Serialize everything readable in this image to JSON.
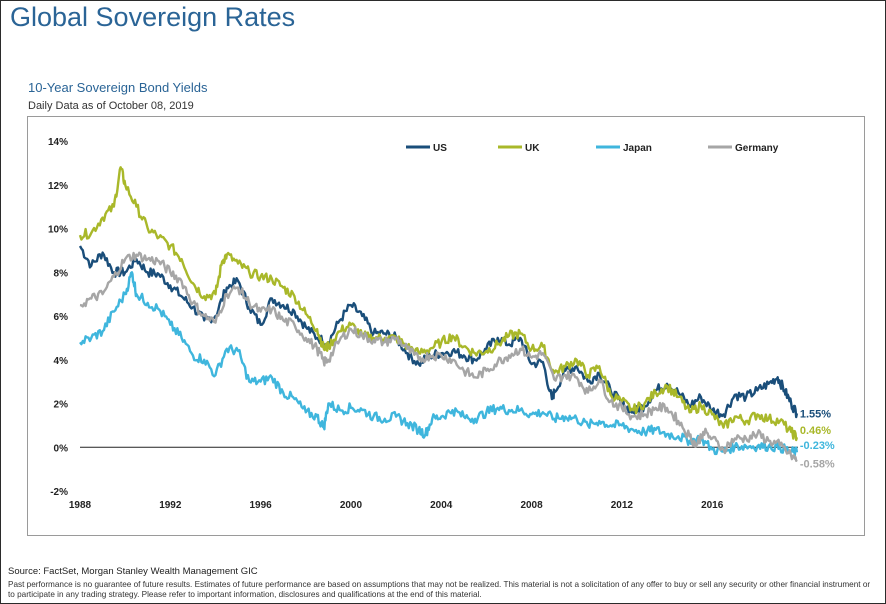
{
  "page": {
    "title": "Global Sovereign Rates",
    "subtitle": "10-Year Sovereign Bond Yields",
    "date_note": "Daily Data as of October 08, 2019",
    "source": "Source: FactSet, Morgan Stanley Wealth Management GIC",
    "disclaimer": "Past performance is no guarantee of future results. Estimates of future performance are based on assumptions that may not be realized. This material is not a solicitation of any offer to buy or sell any security or other financial instrument or to participate in any trading strategy. Please refer to important information, disclosures and qualifications at the end of this material."
  },
  "chart_data": {
    "type": "line",
    "title": "10-Year Sovereign Bond Yields",
    "xlabel": "",
    "ylabel": "",
    "xlim": [
      1988,
      2019.8
    ],
    "ylim": [
      -2,
      14
    ],
    "x_ticks": [
      1988,
      1992,
      1996,
      2000,
      2004,
      2008,
      2012,
      2016
    ],
    "y_ticks": [
      -2,
      0,
      2,
      4,
      6,
      8,
      10,
      12,
      14
    ],
    "y_tick_labels": [
      "-2%",
      "0%",
      "2%",
      "4%",
      "6%",
      "8%",
      "10%",
      "12%",
      "14%"
    ],
    "grid": false,
    "zero_line": true,
    "legend_position": "top",
    "series": [
      {
        "name": "US",
        "color": "#1a4e7a",
        "end_label": "1.55%",
        "points": [
          [
            1988,
            9.2
          ],
          [
            1988.5,
            8.3
          ],
          [
            1989,
            8.9
          ],
          [
            1989.5,
            8.0
          ],
          [
            1990,
            8.0
          ],
          [
            1990.5,
            8.6
          ],
          [
            1991,
            8.0
          ],
          [
            1991.5,
            7.9
          ],
          [
            1992,
            7.4
          ],
          [
            1992.5,
            6.9
          ],
          [
            1993,
            6.4
          ],
          [
            1993.5,
            5.8
          ],
          [
            1994,
            6.0
          ],
          [
            1994.5,
            7.3
          ],
          [
            1995,
            7.6
          ],
          [
            1995.5,
            6.4
          ],
          [
            1996,
            5.6
          ],
          [
            1996.5,
            6.8
          ],
          [
            1997,
            6.5
          ],
          [
            1997.5,
            6.2
          ],
          [
            1998,
            5.5
          ],
          [
            1998.5,
            5.0
          ],
          [
            1999,
            4.8
          ],
          [
            1999.5,
            5.8
          ],
          [
            2000,
            6.5
          ],
          [
            2000.5,
            6.0
          ],
          [
            2001,
            5.2
          ],
          [
            2001.5,
            5.2
          ],
          [
            2002,
            5.0
          ],
          [
            2002.5,
            4.3
          ],
          [
            2003,
            3.8
          ],
          [
            2003.5,
            4.2
          ],
          [
            2004,
            4.3
          ],
          [
            2004.5,
            4.4
          ],
          [
            2005,
            4.2
          ],
          [
            2005.5,
            4.0
          ],
          [
            2006,
            4.5
          ],
          [
            2006.5,
            5.0
          ],
          [
            2007,
            4.7
          ],
          [
            2007.5,
            5.0
          ],
          [
            2008,
            3.8
          ],
          [
            2008.5,
            3.9
          ],
          [
            2008.9,
            2.2
          ],
          [
            2009,
            2.5
          ],
          [
            2009.5,
            3.5
          ],
          [
            2010,
            3.7
          ],
          [
            2010.5,
            3.0
          ],
          [
            2011,
            3.4
          ],
          [
            2011.5,
            2.6
          ],
          [
            2012,
            2.0
          ],
          [
            2012.5,
            1.6
          ],
          [
            2013,
            1.9
          ],
          [
            2013.5,
            2.6
          ],
          [
            2014,
            2.9
          ],
          [
            2014.5,
            2.5
          ],
          [
            2015,
            1.9
          ],
          [
            2015.5,
            2.3
          ],
          [
            2016,
            1.7
          ],
          [
            2016.5,
            1.5
          ],
          [
            2017,
            2.4
          ],
          [
            2017.5,
            2.3
          ],
          [
            2018,
            2.6
          ],
          [
            2018.5,
            2.9
          ],
          [
            2018.9,
            3.2
          ],
          [
            2019.2,
            2.6
          ],
          [
            2019.5,
            2.0
          ],
          [
            2019.75,
            1.55
          ]
        ]
      },
      {
        "name": "UK",
        "color": "#a9b82a",
        "end_label": "0.46%",
        "points": [
          [
            1988,
            9.7
          ],
          [
            1988.5,
            9.8
          ],
          [
            1989,
            10.5
          ],
          [
            1989.5,
            11.0
          ],
          [
            1989.8,
            12.8
          ],
          [
            1990,
            12.0
          ],
          [
            1990.5,
            11.0
          ],
          [
            1991,
            10.0
          ],
          [
            1991.5,
            9.6
          ],
          [
            1992,
            9.2
          ],
          [
            1992.5,
            8.6
          ],
          [
            1993,
            7.5
          ],
          [
            1993.5,
            6.9
          ],
          [
            1994,
            7.0
          ],
          [
            1994.3,
            8.5
          ],
          [
            1994.5,
            8.8
          ],
          [
            1995,
            8.4
          ],
          [
            1995.5,
            8.0
          ],
          [
            1996,
            7.8
          ],
          [
            1996.5,
            7.7
          ],
          [
            1997,
            7.3
          ],
          [
            1997.5,
            6.9
          ],
          [
            1998,
            6.1
          ],
          [
            1998.5,
            5.4
          ],
          [
            1998.8,
            4.5
          ],
          [
            1999,
            4.6
          ],
          [
            1999.5,
            5.3
          ],
          [
            2000,
            5.6
          ],
          [
            2000.5,
            5.1
          ],
          [
            2001,
            5.0
          ],
          [
            2001.5,
            5.0
          ],
          [
            2002,
            5.0
          ],
          [
            2002.5,
            4.6
          ],
          [
            2003,
            4.3
          ],
          [
            2003.5,
            4.5
          ],
          [
            2004,
            4.8
          ],
          [
            2004.5,
            5.1
          ],
          [
            2005,
            4.6
          ],
          [
            2005.5,
            4.3
          ],
          [
            2006,
            4.4
          ],
          [
            2006.5,
            4.7
          ],
          [
            2007,
            5.1
          ],
          [
            2007.5,
            5.2
          ],
          [
            2008,
            4.5
          ],
          [
            2008.5,
            4.6
          ],
          [
            2009,
            3.4
          ],
          [
            2009.5,
            3.7
          ],
          [
            2010,
            4.0
          ],
          [
            2010.5,
            3.3
          ],
          [
            2011,
            3.7
          ],
          [
            2011.5,
            2.4
          ],
          [
            2012,
            2.1
          ],
          [
            2012.5,
            1.7
          ],
          [
            2013,
            2.0
          ],
          [
            2013.5,
            2.5
          ],
          [
            2014,
            2.8
          ],
          [
            2014.5,
            2.3
          ],
          [
            2015,
            1.6
          ],
          [
            2015.5,
            1.9
          ],
          [
            2016,
            1.5
          ],
          [
            2016.5,
            0.9
          ],
          [
            2017,
            1.4
          ],
          [
            2017.5,
            1.2
          ],
          [
            2018,
            1.5
          ],
          [
            2018.5,
            1.3
          ],
          [
            2019,
            1.2
          ],
          [
            2019.5,
            0.7
          ],
          [
            2019.75,
            0.46
          ]
        ]
      },
      {
        "name": "Japan",
        "color": "#3fb6dd",
        "end_label": "-0.23%",
        "points": [
          [
            1988,
            4.8
          ],
          [
            1988.5,
            5.0
          ],
          [
            1989,
            5.3
          ],
          [
            1989.5,
            6.2
          ],
          [
            1990,
            7.0
          ],
          [
            1990.3,
            8.0
          ],
          [
            1990.5,
            7.0
          ],
          [
            1991,
            6.6
          ],
          [
            1991.5,
            6.3
          ],
          [
            1992,
            5.6
          ],
          [
            1992.5,
            5.0
          ],
          [
            1993,
            4.2
          ],
          [
            1993.5,
            4.0
          ],
          [
            1994,
            3.3
          ],
          [
            1994.5,
            4.5
          ],
          [
            1995,
            4.4
          ],
          [
            1995.5,
            3.0
          ],
          [
            1996,
            3.0
          ],
          [
            1996.5,
            3.2
          ],
          [
            1997,
            2.5
          ],
          [
            1997.5,
            2.2
          ],
          [
            1998,
            1.6
          ],
          [
            1998.5,
            1.4
          ],
          [
            1998.8,
            0.9
          ],
          [
            1999,
            2.0
          ],
          [
            1999.5,
            1.7
          ],
          [
            2000,
            1.8
          ],
          [
            2000.5,
            1.7
          ],
          [
            2001,
            1.4
          ],
          [
            2001.5,
            1.3
          ],
          [
            2002,
            1.4
          ],
          [
            2002.5,
            1.1
          ],
          [
            2003,
            0.8
          ],
          [
            2003.3,
            0.6
          ],
          [
            2003.6,
            1.3
          ],
          [
            2004,
            1.4
          ],
          [
            2004.5,
            1.7
          ],
          [
            2005,
            1.4
          ],
          [
            2005.5,
            1.3
          ],
          [
            2006,
            1.6
          ],
          [
            2006.5,
            1.8
          ],
          [
            2007,
            1.7
          ],
          [
            2007.5,
            1.7
          ],
          [
            2008,
            1.5
          ],
          [
            2008.5,
            1.6
          ],
          [
            2009,
            1.3
          ],
          [
            2009.5,
            1.4
          ],
          [
            2010,
            1.3
          ],
          [
            2010.5,
            1.0
          ],
          [
            2011,
            1.2
          ],
          [
            2011.5,
            1.0
          ],
          [
            2012,
            1.0
          ],
          [
            2012.5,
            0.8
          ],
          [
            2013,
            0.7
          ],
          [
            2013.5,
            0.8
          ],
          [
            2014,
            0.6
          ],
          [
            2014.5,
            0.5
          ],
          [
            2015,
            0.3
          ],
          [
            2015.5,
            0.4
          ],
          [
            2016,
            -0.1
          ],
          [
            2016.5,
            -0.2
          ],
          [
            2017,
            0.05
          ],
          [
            2017.5,
            0.05
          ],
          [
            2018,
            0.05
          ],
          [
            2018.5,
            0.05
          ],
          [
            2019,
            0.0
          ],
          [
            2019.5,
            -0.2
          ],
          [
            2019.75,
            -0.23
          ]
        ]
      },
      {
        "name": "Germany",
        "color": "#a6a6a6",
        "end_label": "-0.58%",
        "points": [
          [
            1988,
            6.5
          ],
          [
            1988.5,
            6.8
          ],
          [
            1989,
            7.0
          ],
          [
            1989.5,
            7.8
          ],
          [
            1990,
            8.6
          ],
          [
            1990.5,
            8.8
          ],
          [
            1991,
            8.6
          ],
          [
            1991.5,
            8.5
          ],
          [
            1992,
            8.0
          ],
          [
            1992.5,
            7.6
          ],
          [
            1993,
            6.6
          ],
          [
            1993.5,
            6.0
          ],
          [
            1994,
            5.7
          ],
          [
            1994.5,
            7.0
          ],
          [
            1995,
            7.3
          ],
          [
            1995.5,
            6.6
          ],
          [
            1996,
            6.2
          ],
          [
            1996.5,
            6.3
          ],
          [
            1997,
            5.8
          ],
          [
            1997.5,
            5.6
          ],
          [
            1998,
            5.0
          ],
          [
            1998.5,
            4.5
          ],
          [
            1998.8,
            3.9
          ],
          [
            1999,
            4.0
          ],
          [
            1999.5,
            4.9
          ],
          [
            2000,
            5.4
          ],
          [
            2000.5,
            5.1
          ],
          [
            2001,
            4.9
          ],
          [
            2001.5,
            4.8
          ],
          [
            2002,
            5.0
          ],
          [
            2002.5,
            4.5
          ],
          [
            2003,
            4.0
          ],
          [
            2003.5,
            4.2
          ],
          [
            2004,
            4.2
          ],
          [
            2004.5,
            4.0
          ],
          [
            2005,
            3.5
          ],
          [
            2005.5,
            3.2
          ],
          [
            2006,
            3.5
          ],
          [
            2006.5,
            3.9
          ],
          [
            2007,
            4.2
          ],
          [
            2007.5,
            4.5
          ],
          [
            2008,
            4.1
          ],
          [
            2008.5,
            4.3
          ],
          [
            2009,
            3.1
          ],
          [
            2009.5,
            3.3
          ],
          [
            2010,
            3.2
          ],
          [
            2010.5,
            2.5
          ],
          [
            2011,
            3.1
          ],
          [
            2011.5,
            2.1
          ],
          [
            2012,
            1.8
          ],
          [
            2012.5,
            1.4
          ],
          [
            2013,
            1.5
          ],
          [
            2013.5,
            1.8
          ],
          [
            2014,
            1.8
          ],
          [
            2014.5,
            1.2
          ],
          [
            2015,
            0.5
          ],
          [
            2015.3,
            0.1
          ],
          [
            2015.6,
            0.7
          ],
          [
            2016,
            0.4
          ],
          [
            2016.5,
            -0.1
          ],
          [
            2017,
            0.4
          ],
          [
            2017.5,
            0.4
          ],
          [
            2018,
            0.6
          ],
          [
            2018.5,
            0.3
          ],
          [
            2019,
            0.1
          ],
          [
            2019.5,
            -0.4
          ],
          [
            2019.75,
            -0.58
          ]
        ]
      }
    ]
  }
}
